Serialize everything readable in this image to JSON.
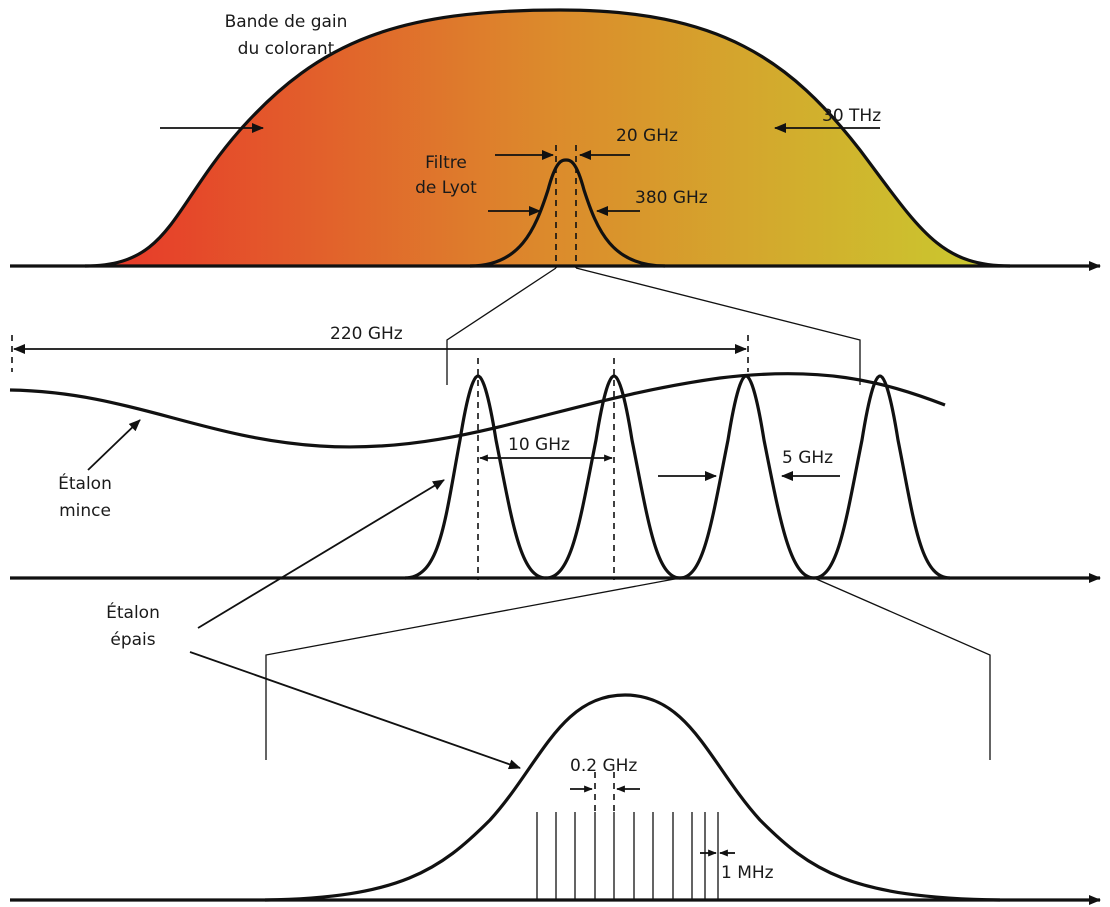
{
  "labels": {
    "gain_band_line1": "Bande de gain",
    "gain_band_line2": "du colorant",
    "width_30thz": "30 THz",
    "lyot_line1": "Filtre",
    "lyot_line2": "de Lyot",
    "width_20ghz": "20 GHz",
    "width_380ghz": "380 GHz",
    "span_220ghz": "220 GHz",
    "thin_etalon_line1": "Étalon",
    "thin_etalon_line2": "mince",
    "spacing_10ghz": "10 GHz",
    "width_5ghz": "5 GHz",
    "thick_etalon_line1": "Étalon",
    "thick_etalon_line2": "épais",
    "spacing_02ghz": "0.2 GHz",
    "mode_1mhz": "1 MHz"
  },
  "colors": {
    "gain_gradient_start": "#e8352a",
    "gain_gradient_mid": "#dc8a2c",
    "gain_gradient_end": "#c9cc2e",
    "ink": "#111111"
  }
}
